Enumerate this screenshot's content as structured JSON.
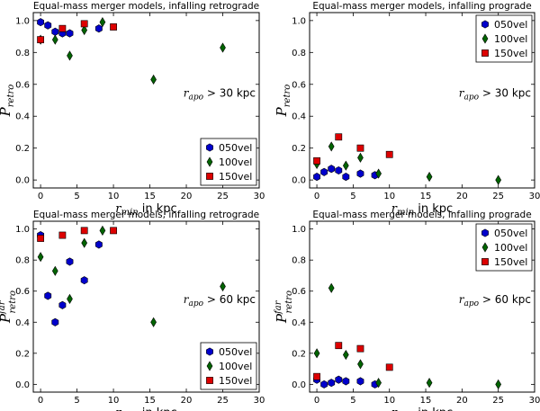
{
  "chart_data": [
    {
      "type": "scatter",
      "title": "Equal-mass merger models, infalling retrograde",
      "xlabel_main": "r",
      "xlabel_sub": "min",
      "xlabel_tail": " in kpc",
      "ylabel_main": "P",
      "ylabel_sub": "retro",
      "ylabel_sup": "",
      "annotation_main": "r",
      "annotation_sub": "apo",
      "annotation_tail": " > 30 kpc",
      "annotation_pos": "right-middle",
      "legend_position": "bottom-right",
      "xlim": [
        -1,
        30
      ],
      "ylim": [
        -0.05,
        1.05
      ],
      "xticks": [
        0,
        5,
        10,
        15,
        20,
        25,
        30
      ],
      "yticks": [
        0.0,
        0.2,
        0.4,
        0.6,
        0.8,
        1.0
      ],
      "series": [
        {
          "name": "050vel",
          "marker": "hexagon",
          "color": "#0000cc",
          "x": [
            0,
            1,
            2,
            3,
            4,
            8
          ],
          "y": [
            0.99,
            0.97,
            0.93,
            0.92,
            0.92,
            0.95
          ]
        },
        {
          "name": "100vel",
          "marker": "diamond",
          "color": "#006400",
          "x": [
            0,
            2,
            4,
            6,
            8.5,
            15.5,
            25
          ],
          "y": [
            0.88,
            0.88,
            0.78,
            0.94,
            0.99,
            0.63,
            0.83
          ]
        },
        {
          "name": "150vel",
          "marker": "square",
          "color": "#dd0000",
          "x": [
            0,
            3,
            6,
            10
          ],
          "y": [
            0.88,
            0.95,
            0.98,
            0.96
          ]
        }
      ]
    },
    {
      "type": "scatter",
      "title": "Equal-mass merger models, infalling prograde",
      "xlabel_main": "r",
      "xlabel_sub": "min",
      "xlabel_tail": " in kpc",
      "ylabel_main": "P",
      "ylabel_sub": "retro",
      "ylabel_sup": "",
      "annotation_main": "r",
      "annotation_sub": "apo",
      "annotation_tail": " > 30 kpc",
      "annotation_pos": "right-middle",
      "legend_position": "top-right",
      "xlim": [
        -1,
        30
      ],
      "ylim": [
        -0.05,
        1.05
      ],
      "xticks": [
        0,
        5,
        10,
        15,
        20,
        25,
        30
      ],
      "yticks": [
        0.0,
        0.2,
        0.4,
        0.6,
        0.8,
        1.0
      ],
      "series": [
        {
          "name": "050vel",
          "marker": "hexagon",
          "color": "#0000cc",
          "x": [
            0,
            1,
            2,
            3,
            4,
            6,
            8
          ],
          "y": [
            0.02,
            0.05,
            0.07,
            0.06,
            0.02,
            0.04,
            0.03
          ]
        },
        {
          "name": "100vel",
          "marker": "diamond",
          "color": "#006400",
          "x": [
            0,
            2,
            4,
            6,
            8.5,
            15.5,
            25
          ],
          "y": [
            0.1,
            0.21,
            0.09,
            0.14,
            0.04,
            0.02,
            0.0
          ]
        },
        {
          "name": "150vel",
          "marker": "square",
          "color": "#dd0000",
          "x": [
            0,
            3,
            6,
            10
          ],
          "y": [
            0.12,
            0.27,
            0.2,
            0.16
          ]
        }
      ]
    },
    {
      "type": "scatter",
      "title": "Equal-mass merger models, infalling retrograde",
      "xlabel_main": "r",
      "xlabel_sub": "min",
      "xlabel_tail": " in kpc",
      "ylabel_main": "P",
      "ylabel_sub": "retro",
      "ylabel_sup": "far",
      "annotation_main": "r",
      "annotation_sub": "apo",
      "annotation_tail": " > 60 kpc",
      "annotation_pos": "right-middle",
      "legend_position": "bottom-right",
      "xlim": [
        -1,
        30
      ],
      "ylim": [
        -0.05,
        1.05
      ],
      "xticks": [
        0,
        5,
        10,
        15,
        20,
        25,
        30
      ],
      "yticks": [
        0.0,
        0.2,
        0.4,
        0.6,
        0.8,
        1.0
      ],
      "series": [
        {
          "name": "050vel",
          "marker": "hexagon",
          "color": "#0000cc",
          "x": [
            0,
            1,
            2,
            3,
            4,
            6,
            8
          ],
          "y": [
            0.96,
            0.57,
            0.4,
            0.51,
            0.79,
            0.67,
            0.9
          ]
        },
        {
          "name": "100vel",
          "marker": "diamond",
          "color": "#006400",
          "x": [
            0,
            2,
            4,
            6,
            8.5,
            15.5,
            25
          ],
          "y": [
            0.82,
            0.73,
            0.55,
            0.91,
            0.99,
            0.4,
            0.63
          ]
        },
        {
          "name": "150vel",
          "marker": "square",
          "color": "#dd0000",
          "x": [
            0,
            3,
            6,
            10
          ],
          "y": [
            0.94,
            0.96,
            0.99,
            0.99
          ]
        }
      ]
    },
    {
      "type": "scatter",
      "title": "Equal-mass merger models, infalling prograde",
      "xlabel_main": "r",
      "xlabel_sub": "min",
      "xlabel_tail": " in kpc",
      "ylabel_main": "P",
      "ylabel_sub": "retro",
      "ylabel_sup": "far",
      "annotation_main": "r",
      "annotation_sub": "apo",
      "annotation_tail": " > 60 kpc",
      "annotation_pos": "right-middle",
      "legend_position": "top-right",
      "xlim": [
        -1,
        30
      ],
      "ylim": [
        -0.05,
        1.05
      ],
      "xticks": [
        0,
        5,
        10,
        15,
        20,
        25,
        30
      ],
      "yticks": [
        0.0,
        0.2,
        0.4,
        0.6,
        0.8,
        1.0
      ],
      "series": [
        {
          "name": "050vel",
          "marker": "hexagon",
          "color": "#0000cc",
          "x": [
            0,
            1,
            2,
            3,
            4,
            6,
            8
          ],
          "y": [
            0.03,
            0.0,
            0.01,
            0.03,
            0.02,
            0.02,
            0.0
          ]
        },
        {
          "name": "100vel",
          "marker": "diamond",
          "color": "#006400",
          "x": [
            0,
            2,
            4,
            6,
            8.5,
            15.5,
            25
          ],
          "y": [
            0.2,
            0.62,
            0.19,
            0.13,
            0.01,
            0.01,
            0.0
          ]
        },
        {
          "name": "150vel",
          "marker": "square",
          "color": "#dd0000",
          "x": [
            0,
            3,
            6,
            10
          ],
          "y": [
            0.05,
            0.25,
            0.23,
            0.11
          ]
        }
      ]
    }
  ]
}
